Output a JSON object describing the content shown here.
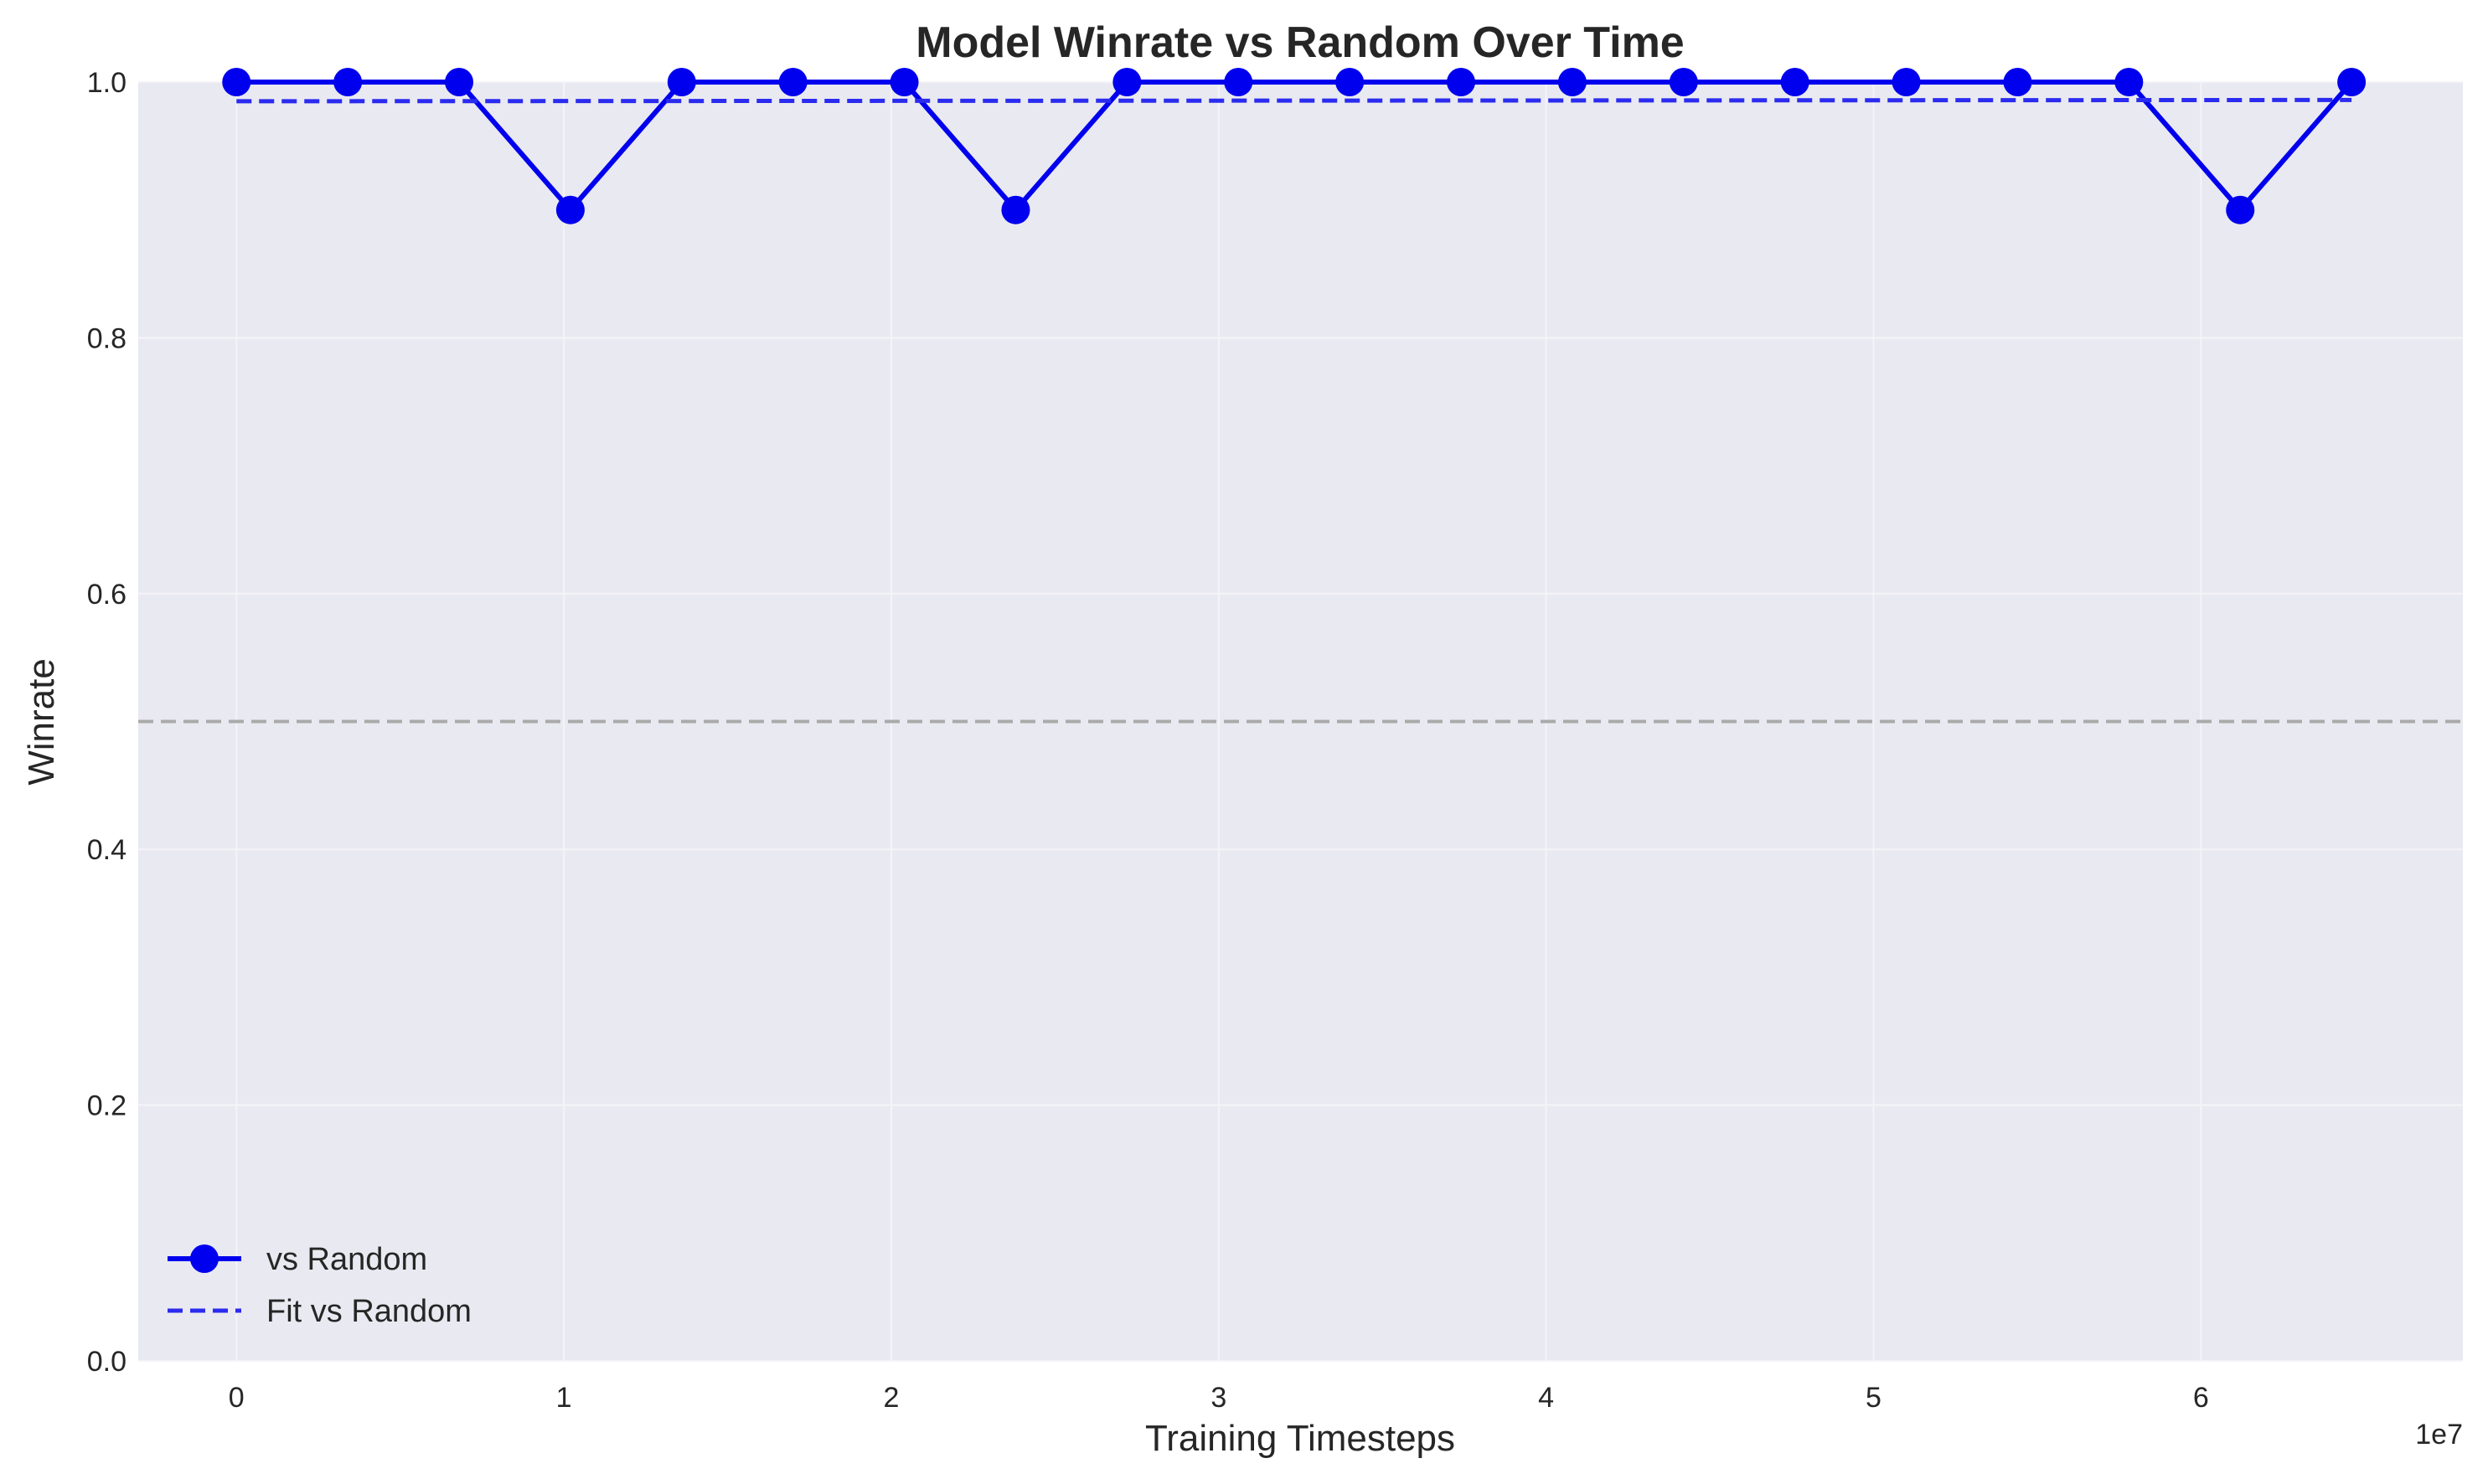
{
  "chart_data": {
    "type": "line",
    "title": "Model Winrate vs Random Over Time",
    "xlabel": "Training Timesteps",
    "ylabel": "Winrate",
    "x_offset_label": "1e7",
    "xlim": [
      -0.3,
      6.8
    ],
    "ylim": [
      0.0,
      1.0
    ],
    "x_ticks": [
      0,
      1,
      2,
      3,
      4,
      5,
      6
    ],
    "x_tick_labels": [
      "0",
      "1",
      "2",
      "3",
      "4",
      "5",
      "6"
    ],
    "y_ticks": [
      0.0,
      0.2,
      0.4,
      0.6,
      0.8,
      1.0
    ],
    "y_tick_labels": [
      "0.0",
      "0.2",
      "0.4",
      "0.6",
      "0.8",
      "1.0"
    ],
    "grid": true,
    "legend_position": "lower-left",
    "reference_line": {
      "y": 0.5,
      "color": "#aaaaaa",
      "style": "dashed"
    },
    "series": [
      {
        "name": "vs Random",
        "color": "#0000ee",
        "style": "solid-marker",
        "x": [
          0.0,
          0.34,
          0.68,
          1.02,
          1.36,
          1.7,
          2.04,
          2.38,
          2.72,
          3.06,
          3.4,
          3.74,
          4.08,
          4.42,
          4.76,
          5.1,
          5.44,
          5.78,
          6.12,
          6.46
        ],
        "values": [
          1.0,
          1.0,
          1.0,
          0.9,
          1.0,
          1.0,
          1.0,
          0.9,
          1.0,
          1.0,
          1.0,
          1.0,
          1.0,
          1.0,
          1.0,
          1.0,
          1.0,
          1.0,
          0.9,
          1.0
        ]
      },
      {
        "name": "Fit vs Random",
        "color": "#2b2bf0",
        "style": "dashed",
        "x": [
          0.0,
          6.46
        ],
        "values": [
          0.985,
          0.986
        ]
      }
    ]
  },
  "colors": {
    "plot_background": "#e9e9f1",
    "grid": "#f4f4f8"
  }
}
